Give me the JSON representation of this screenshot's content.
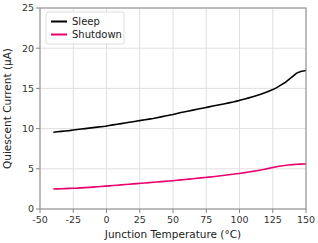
{
  "chart_data": {
    "type": "line",
    "xlabel": "Junction Temperature (°C)",
    "ylabel": "Quiescent Current (µA)",
    "xlim": [
      -50,
      150
    ],
    "ylim": [
      0,
      25
    ],
    "xticks": [
      -50,
      -25,
      0,
      25,
      50,
      75,
      100,
      125,
      150
    ],
    "yticks": [
      0,
      5,
      10,
      15,
      20,
      25
    ],
    "grid": true,
    "legend": "upper left",
    "x": [
      -40,
      -37,
      -34,
      -31,
      -28,
      -25,
      -22,
      -19,
      -16,
      -13,
      -10,
      -7,
      -4,
      -1,
      2,
      5,
      8,
      11,
      14,
      17,
      20,
      23,
      26,
      29,
      32,
      35,
      38,
      41,
      44,
      47,
      50,
      53,
      56,
      59,
      62,
      65,
      68,
      71,
      74,
      77,
      80,
      83,
      86,
      89,
      92,
      95,
      98,
      101,
      104,
      107,
      110,
      113,
      116,
      119,
      122,
      125,
      128,
      131,
      134,
      137,
      140,
      143,
      146,
      149,
      150
    ],
    "series": [
      {
        "name": "Sleep",
        "color": "#000000",
        "values": [
          9.55,
          9.6,
          9.65,
          9.7,
          9.75,
          9.82,
          9.88,
          9.94,
          10.0,
          10.06,
          10.12,
          10.18,
          10.24,
          10.3,
          10.38,
          10.46,
          10.54,
          10.62,
          10.7,
          10.78,
          10.86,
          10.94,
          11.02,
          11.1,
          11.18,
          11.26,
          11.36,
          11.46,
          11.56,
          11.66,
          11.76,
          11.88,
          12.0,
          12.1,
          12.2,
          12.3,
          12.4,
          12.5,
          12.6,
          12.7,
          12.8,
          12.9,
          13.0,
          13.1,
          13.2,
          13.3,
          13.42,
          13.55,
          13.68,
          13.82,
          13.97,
          14.12,
          14.28,
          14.45,
          14.65,
          14.85,
          15.1,
          15.4,
          15.7,
          16.1,
          16.5,
          16.9,
          17.1,
          17.2,
          17.25
        ]
      },
      {
        "name": "Shutdown",
        "color": "#e8006e",
        "values": [
          2.48,
          2.5,
          2.52,
          2.54,
          2.56,
          2.58,
          2.6,
          2.63,
          2.66,
          2.69,
          2.72,
          2.76,
          2.8,
          2.84,
          2.88,
          2.92,
          2.96,
          3.0,
          3.04,
          3.08,
          3.12,
          3.16,
          3.2,
          3.24,
          3.28,
          3.32,
          3.36,
          3.4,
          3.44,
          3.48,
          3.52,
          3.57,
          3.62,
          3.67,
          3.72,
          3.77,
          3.82,
          3.87,
          3.92,
          3.97,
          4.02,
          4.08,
          4.14,
          4.2,
          4.26,
          4.32,
          4.38,
          4.45,
          4.52,
          4.6,
          4.68,
          4.76,
          4.85,
          4.95,
          5.05,
          5.15,
          5.25,
          5.35,
          5.42,
          5.48,
          5.52,
          5.56,
          5.58,
          5.6,
          5.62
        ]
      }
    ]
  }
}
